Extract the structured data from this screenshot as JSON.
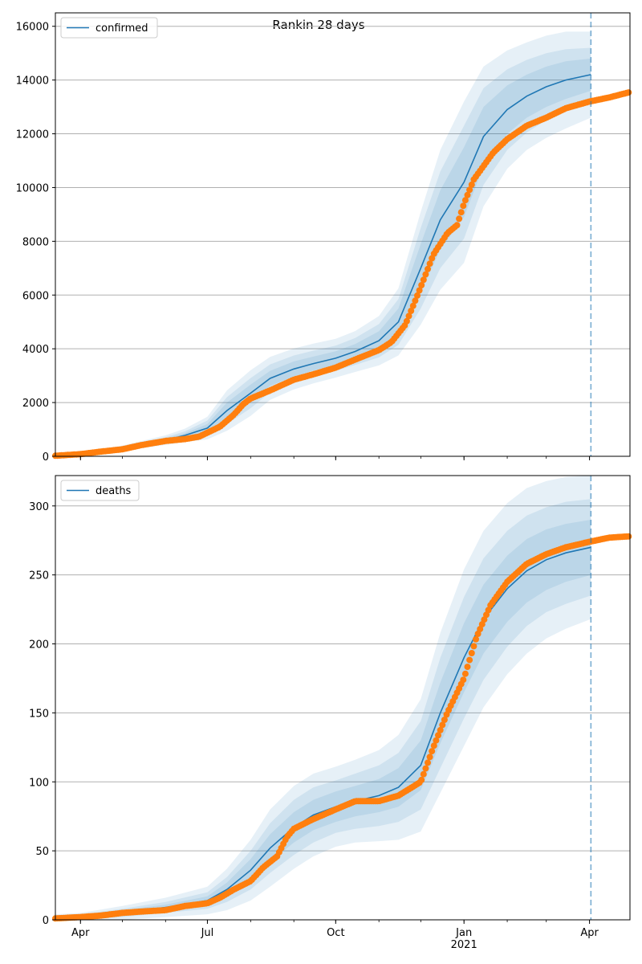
{
  "title": "Rankin 28 days",
  "colors": {
    "model": "#1f77b4",
    "observed": "#ff7f0e",
    "band": "#1f77b4",
    "grid": "#b0b0b0",
    "cutoff": "#1f77b4"
  },
  "x_ticks": [
    {
      "date": "2020-04-01",
      "label": "Apr",
      "sub": ""
    },
    {
      "date": "2020-07-01",
      "label": "Jul",
      "sub": ""
    },
    {
      "date": "2020-10-01",
      "label": "Oct",
      "sub": ""
    },
    {
      "date": "2021-01-01",
      "label": "Jan",
      "sub": "2021"
    },
    {
      "date": "2021-04-01",
      "label": "Apr",
      "sub": ""
    }
  ],
  "chart_data": [
    {
      "type": "line",
      "legend": "confirmed",
      "legend_position": "top-left",
      "grid": "horizontal",
      "xlim": [
        "2020-03-14",
        "2021-04-30"
      ],
      "ylim": [
        0,
        16500
      ],
      "yticks": [
        0,
        2000,
        4000,
        6000,
        8000,
        10000,
        12000,
        14000,
        16000
      ],
      "cutoff_date": "2021-04-02",
      "model": {
        "x": [
          "2020-03-14",
          "2020-04-01",
          "2020-05-01",
          "2020-06-01",
          "2020-06-15",
          "2020-07-01",
          "2020-07-15",
          "2020-08-01",
          "2020-08-15",
          "2020-09-01",
          "2020-09-15",
          "2020-10-01",
          "2020-10-15",
          "2020-11-01",
          "2020-11-15",
          "2020-12-01",
          "2020-12-15",
          "2021-01-01",
          "2021-01-15",
          "2021-02-01",
          "2021-02-15",
          "2021-03-01",
          "2021-03-15",
          "2021-04-02"
        ],
        "y": [
          20,
          80,
          300,
          600,
          780,
          1050,
          1700,
          2350,
          2900,
          3250,
          3450,
          3650,
          3900,
          4300,
          5000,
          7000,
          8800,
          10200,
          11900,
          12900,
          13400,
          13750,
          14000,
          14200
        ]
      },
      "band_widths": [
        [
          0,
          10,
          40,
          60,
          80,
          150,
          300,
          320,
          280,
          280,
          260,
          260,
          280,
          350,
          500,
          900,
          1100,
          1300,
          1100,
          900,
          800,
          750,
          700,
          600
        ],
        [
          0,
          20,
          70,
          110,
          150,
          280,
          500,
          560,
          520,
          500,
          480,
          470,
          500,
          620,
          850,
          1500,
          1800,
          2100,
          1800,
          1500,
          1350,
          1250,
          1150,
          1000
        ],
        [
          0,
          40,
          100,
          180,
          250,
          420,
          750,
          850,
          800,
          760,
          740,
          720,
          760,
          920,
          1250,
          2100,
          2600,
          3000,
          2600,
          2200,
          2000,
          1900,
          1800,
          1600
        ]
      ],
      "observed": {
        "x": [
          "2020-03-14",
          "2020-04-01",
          "2020-04-15",
          "2020-05-01",
          "2020-05-15",
          "2020-06-01",
          "2020-06-15",
          "2020-06-25",
          "2020-07-01",
          "2020-07-10",
          "2020-07-20",
          "2020-07-27",
          "2020-08-01",
          "2020-08-15",
          "2020-09-01",
          "2020-09-15",
          "2020-10-01",
          "2020-10-15",
          "2020-11-01",
          "2020-11-10",
          "2020-11-20",
          "2020-12-01",
          "2020-12-10",
          "2020-12-20",
          "2020-12-27",
          "2021-01-01",
          "2021-01-08",
          "2021-01-15",
          "2021-01-22",
          "2021-02-01",
          "2021-02-15",
          "2021-03-01",
          "2021-03-15",
          "2021-04-01",
          "2021-04-15",
          "2021-04-30"
        ],
        "y": [
          20,
          80,
          170,
          260,
          420,
          570,
          640,
          730,
          880,
          1100,
          1550,
          1950,
          2150,
          2450,
          2850,
          3050,
          3300,
          3600,
          3950,
          4250,
          4900,
          6300,
          7500,
          8300,
          8600,
          9400,
          10300,
          10800,
          11300,
          11800,
          12300,
          12600,
          12950,
          13200,
          13350,
          13550
        ]
      }
    },
    {
      "type": "line",
      "legend": "deaths",
      "legend_position": "top-left",
      "grid": "horizontal",
      "xlim": [
        "2020-03-14",
        "2021-04-30"
      ],
      "ylim": [
        0,
        322
      ],
      "yticks": [
        0,
        50,
        100,
        150,
        200,
        250,
        300
      ],
      "cutoff_date": "2021-04-02",
      "model": {
        "x": [
          "2020-03-14",
          "2020-04-01",
          "2020-05-01",
          "2020-06-01",
          "2020-07-01",
          "2020-07-15",
          "2020-08-01",
          "2020-08-15",
          "2020-09-01",
          "2020-09-15",
          "2020-10-01",
          "2020-10-15",
          "2020-11-01",
          "2020-11-15",
          "2020-12-01",
          "2020-12-15",
          "2021-01-01",
          "2021-01-15",
          "2021-02-01",
          "2021-02-15",
          "2021-03-01",
          "2021-03-15",
          "2021-04-02"
        ],
        "y": [
          1,
          2,
          5,
          9,
          14,
          22,
          36,
          52,
          67,
          76,
          82,
          86,
          90,
          96,
          112,
          150,
          190,
          218,
          240,
          253,
          261,
          266,
          270
        ]
      },
      "band_widths": [
        [
          1,
          1,
          2,
          2,
          3,
          5,
          8,
          10,
          11,
          11,
          11,
          11,
          12,
          14,
          18,
          22,
          25,
          25,
          24,
          23,
          22,
          21,
          20
        ],
        [
          2,
          2,
          3,
          4,
          6,
          9,
          14,
          18,
          20,
          20,
          19,
          20,
          22,
          25,
          32,
          40,
          44,
          44,
          42,
          40,
          38,
          37,
          35
        ],
        [
          3,
          3,
          5,
          7,
          10,
          15,
          22,
          28,
          30,
          30,
          29,
          30,
          33,
          38,
          48,
          58,
          64,
          64,
          62,
          60,
          57,
          55,
          52
        ]
      ],
      "observed": {
        "x": [
          "2020-03-14",
          "2020-04-01",
          "2020-04-15",
          "2020-05-01",
          "2020-05-15",
          "2020-06-01",
          "2020-06-15",
          "2020-07-01",
          "2020-07-10",
          "2020-07-20",
          "2020-08-01",
          "2020-08-10",
          "2020-08-20",
          "2020-08-27",
          "2020-09-01",
          "2020-09-15",
          "2020-10-01",
          "2020-10-15",
          "2020-11-01",
          "2020-11-15",
          "2020-12-01",
          "2020-12-10",
          "2020-12-20",
          "2021-01-01",
          "2021-01-10",
          "2021-01-20",
          "2021-02-01",
          "2021-02-15",
          "2021-03-01",
          "2021-03-15",
          "2021-04-01",
          "2021-04-15",
          "2021-04-30"
        ],
        "y": [
          1,
          2,
          3,
          5,
          6,
          7,
          10,
          12,
          16,
          22,
          28,
          38,
          46,
          60,
          66,
          73,
          80,
          86,
          86,
          90,
          100,
          125,
          150,
          175,
          205,
          228,
          245,
          258,
          265,
          270,
          274,
          277,
          278
        ]
      }
    }
  ]
}
